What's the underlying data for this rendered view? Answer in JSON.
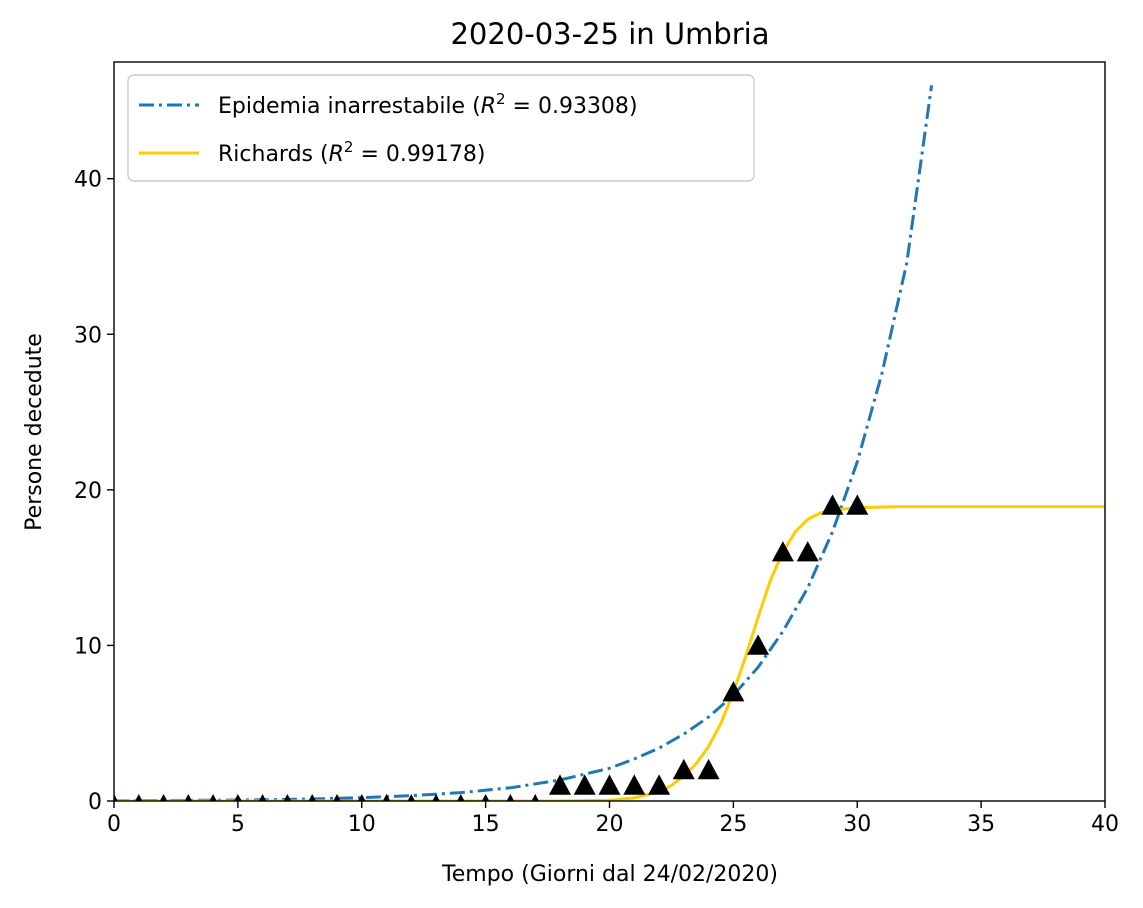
{
  "chart_data": {
    "type": "line",
    "title": "2020-03-25 in Umbria",
    "xlabel": "Tempo (Giorni dal 24/02/2020)",
    "ylabel": "Persone decedute",
    "xlim": [
      0,
      40
    ],
    "ylim": [
      0,
      47.5
    ],
    "xticks": [
      0,
      5,
      10,
      15,
      20,
      25,
      30,
      35,
      40
    ],
    "yticks": [
      0,
      10,
      20,
      30,
      40
    ],
    "grid": false,
    "legend_position": "upper-left",
    "observed": {
      "marker": "triangle",
      "color": "#000000",
      "x": [
        0,
        1,
        2,
        3,
        4,
        5,
        6,
        7,
        8,
        9,
        10,
        11,
        12,
        13,
        14,
        15,
        16,
        17,
        18,
        19,
        20,
        21,
        22,
        23,
        24,
        25,
        26,
        27,
        28,
        29,
        30
      ],
      "y": [
        0,
        0,
        0,
        0,
        0,
        0,
        0,
        0,
        0,
        0,
        0,
        0,
        0,
        0,
        0,
        0,
        0,
        0,
        1,
        1,
        1,
        1,
        1,
        2,
        2,
        7,
        10,
        16,
        16,
        19,
        19
      ]
    },
    "series": [
      {
        "name": "Epidemia inarrestabile",
        "r2": "0.93308",
        "color": "#1f77b4",
        "style": "dashdot",
        "x": [
          0,
          2,
          4,
          6,
          8,
          10,
          12,
          14,
          16,
          18,
          20,
          21,
          22,
          23,
          24,
          25,
          26,
          27,
          28,
          29,
          30,
          31,
          32,
          33
        ],
        "y": [
          0.02,
          0.03,
          0.05,
          0.08,
          0.13,
          0.22,
          0.34,
          0.54,
          0.85,
          1.35,
          2.1,
          2.7,
          3.4,
          4.3,
          5.4,
          6.8,
          8.6,
          10.9,
          13.7,
          17.3,
          21.8,
          27.5,
          34.6,
          46
        ]
      },
      {
        "name": "Richards",
        "r2": "0.99178",
        "color": "#ffcc00",
        "style": "solid",
        "x": [
          0,
          10,
          18,
          20,
          21,
          22,
          22.5,
          23,
          23.5,
          24,
          24.5,
          25,
          25.5,
          26,
          26.5,
          27,
          27.5,
          28,
          28.5,
          29,
          30,
          31,
          32,
          35,
          40
        ],
        "y": [
          0,
          0,
          0,
          0.05,
          0.2,
          0.6,
          1.0,
          1.6,
          2.4,
          3.5,
          5.0,
          7.0,
          9.3,
          11.8,
          14.2,
          16.0,
          17.3,
          18.1,
          18.5,
          18.7,
          18.85,
          18.9,
          18.92,
          18.92,
          18.92
        ]
      }
    ]
  }
}
